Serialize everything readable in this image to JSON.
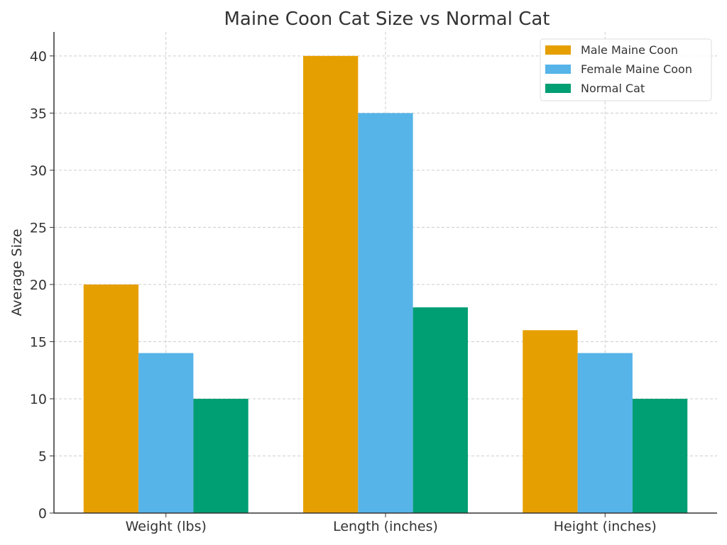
{
  "chart_data": {
    "type": "bar",
    "title": "Maine Coon Cat Size vs Normal Cat",
    "xlabel": "",
    "ylabel": "Average Size",
    "categories": [
      "Weight (lbs)",
      "Length (inches)",
      "Height (inches)"
    ],
    "series": [
      {
        "name": "Male Maine Coon",
        "values": [
          20,
          40,
          16
        ],
        "color": "#E69F00"
      },
      {
        "name": "Female Maine Coon",
        "values": [
          14,
          35,
          14
        ],
        "color": "#56B4E9"
      },
      {
        "name": "Normal Cat",
        "values": [
          10,
          18,
          10
        ],
        "color": "#009E73"
      }
    ],
    "ylim": [
      0,
      42
    ],
    "yticks": [
      0,
      5,
      10,
      15,
      20,
      25,
      30,
      35,
      40
    ],
    "grid": true,
    "legend": "top-right"
  }
}
